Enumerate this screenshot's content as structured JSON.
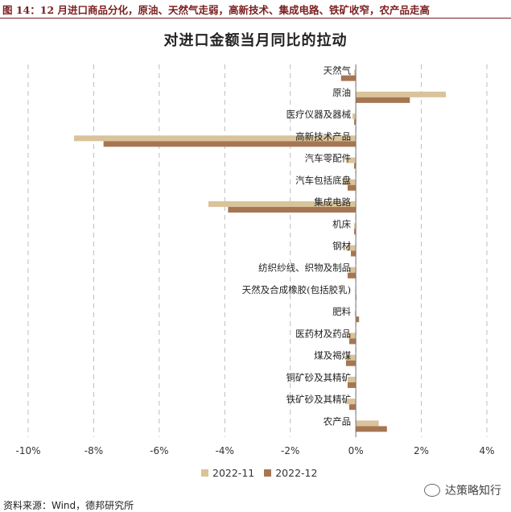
{
  "figure": {
    "title": "图 14：12 月进口商品分化，原油、天然气走弱，高新技术、集成电路、铁矿收窄，农产品走高"
  },
  "source": "资料来源：Wind，德邦研究所",
  "watermark": {
    "text": "达策略知行",
    "icon": "wechat-icon"
  },
  "colors": {
    "series_2022_11": "#d9c39a",
    "series_2022_12": "#a67652",
    "grid": "#bdbdbd",
    "title_red": "#7a1f1f"
  },
  "chart_data": {
    "type": "bar",
    "orientation": "horizontal",
    "title": "对进口金额当月同比的拉动",
    "xlabel": "",
    "ylabel": "",
    "xlim": [
      -10,
      4
    ],
    "x_ticks": [
      -10,
      -8,
      -6,
      -4,
      -2,
      0,
      2,
      4
    ],
    "x_tick_labels": [
      "-10%",
      "-8%",
      "-6%",
      "-4%",
      "-2%",
      "0%",
      "2%",
      "4%"
    ],
    "grid": "vertical dashed",
    "legend_position": "bottom",
    "categories": [
      "天然气",
      "原油",
      "医疗仪器及器械",
      "高新技术产品",
      "汽车零配件",
      "汽车包括底盘",
      "集成电路",
      "机床",
      "钢材",
      "纺织纱线、织物及制品",
      "天然及合成橡胶(包括胶乳)",
      "肥料",
      "医药材及药品",
      "煤及褐煤",
      "铜矿砂及其精矿",
      "铁矿砂及其精矿",
      "农产品"
    ],
    "series": [
      {
        "name": "2022-11",
        "color": "#d9c39a",
        "values": [
          -0.05,
          2.75,
          -0.1,
          -8.6,
          -0.3,
          -0.4,
          -4.5,
          -0.05,
          -0.3,
          -0.2,
          -0.02,
          -0.03,
          -0.25,
          -0.3,
          -0.25,
          -0.3,
          0.7
        ]
      },
      {
        "name": "2022-12",
        "color": "#a67652",
        "values": [
          -0.45,
          1.65,
          -0.05,
          -7.7,
          -0.05,
          -0.25,
          -3.9,
          -0.05,
          -0.15,
          -0.25,
          0.0,
          0.1,
          -0.2,
          -0.3,
          -0.25,
          -0.2,
          0.95
        ]
      }
    ]
  }
}
